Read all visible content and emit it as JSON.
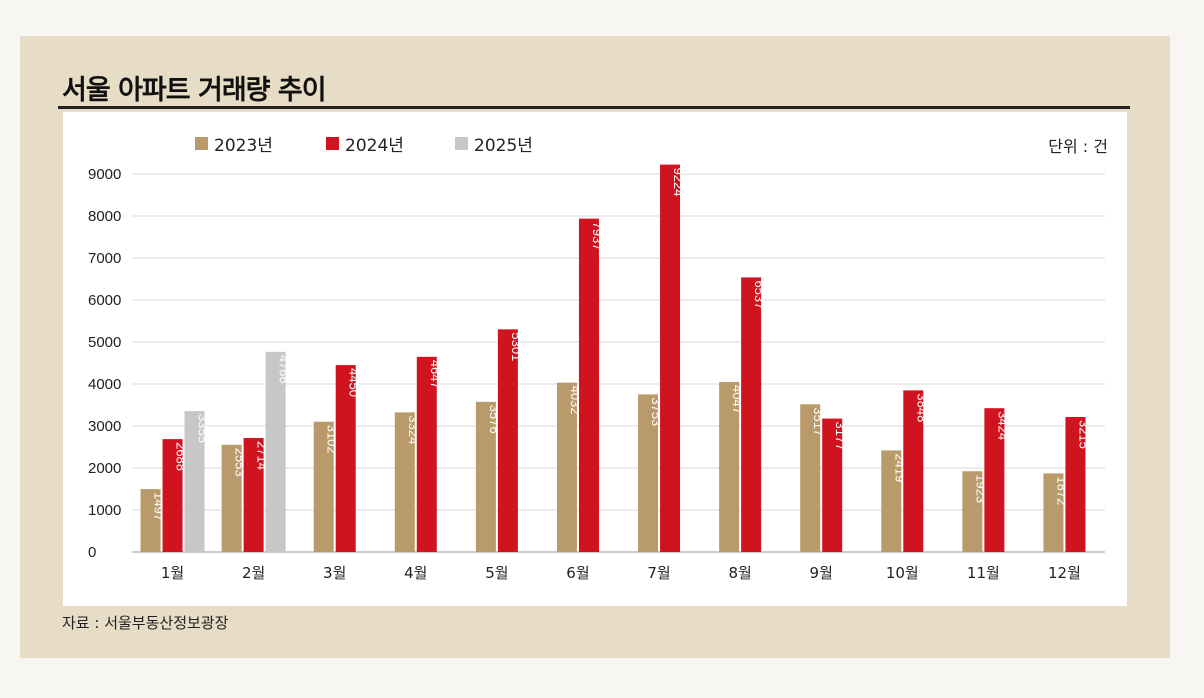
{
  "title": "서울 아파트 거래량 추이",
  "unit": "단위 : 건",
  "source": "자료 : 서울부동산정보광장",
  "colors": {
    "2023년": "#b99a6b",
    "2024년": "#d0141f",
    "2025년": "#c7c7c7"
  },
  "chart_data": {
    "type": "bar",
    "categories": [
      "1월",
      "2월",
      "3월",
      "4월",
      "5월",
      "6월",
      "7월",
      "8월",
      "9월",
      "10월",
      "11월",
      "12월"
    ],
    "series": [
      {
        "name": "2023년",
        "values": [
          1497,
          2553,
          3102,
          3324,
          3576,
          4032,
          3753,
          4047,
          3517,
          2419,
          1923,
          1872
        ]
      },
      {
        "name": "2024년",
        "values": [
          2688,
          2714,
          4450,
          4647,
          5301,
          7937,
          9224,
          6537,
          3177,
          3848,
          3424,
          3215
        ]
      },
      {
        "name": "2025년",
        "values": [
          3355,
          4766,
          null,
          null,
          null,
          null,
          null,
          null,
          null,
          null,
          null,
          null
        ]
      }
    ],
    "yticks": [
      0,
      1000,
      2000,
      3000,
      4000,
      5000,
      6000,
      7000,
      8000,
      9000
    ],
    "ylim": [
      0,
      9000
    ],
    "grid": true,
    "legend": "top-left"
  }
}
